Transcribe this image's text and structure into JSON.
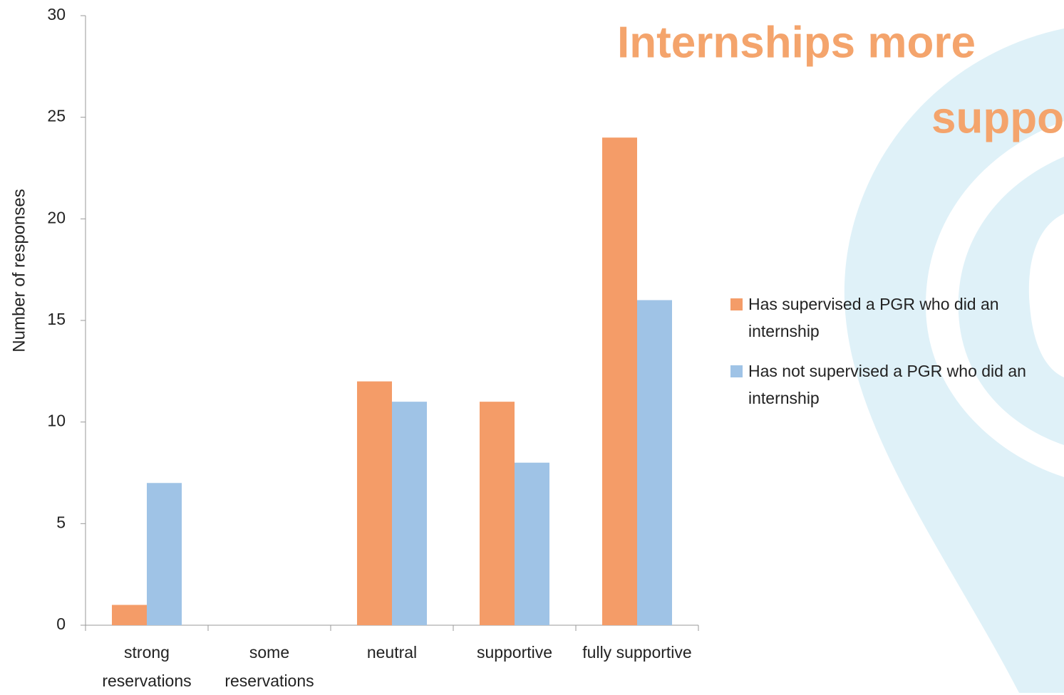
{
  "chart_data": {
    "type": "bar",
    "title": [
      "Internships more",
      "suppo"
    ],
    "y_label": "Number of responses",
    "categories": [
      "strong reservations",
      "some reservations",
      "neutral",
      "supportive",
      "fully supportive"
    ],
    "series": [
      {
        "name": "Has supervised a PGR who did an internship",
        "color": "#f49c68",
        "values": [
          1,
          0,
          12,
          11,
          24
        ]
      },
      {
        "name": "Has not supervised a PGR who did an internship",
        "color": "#9fc3e6",
        "values": [
          7,
          0,
          11,
          8,
          16
        ]
      }
    ],
    "ylim": [
      0,
      30
    ],
    "yticks": [
      0,
      5,
      10,
      15,
      20,
      25,
      30
    ],
    "grid": false,
    "legend": "right"
  }
}
